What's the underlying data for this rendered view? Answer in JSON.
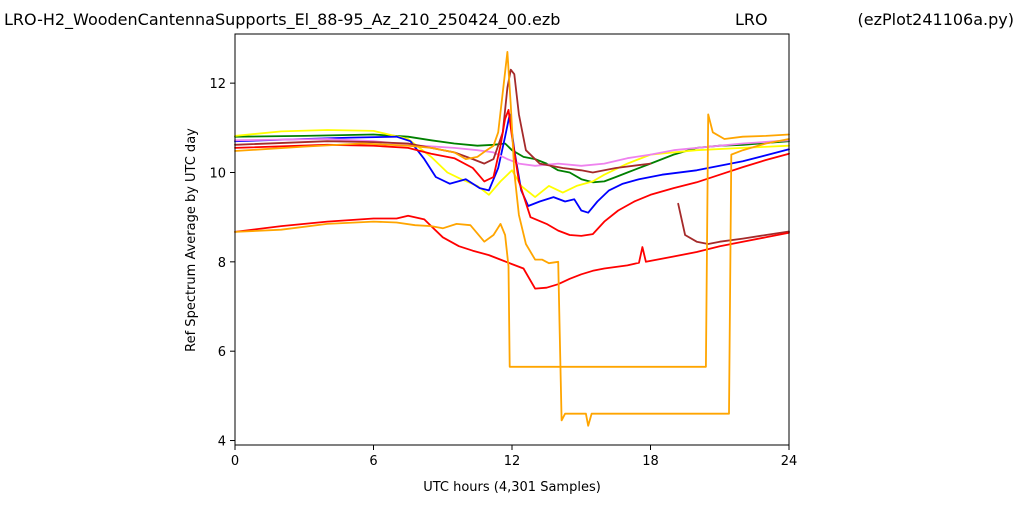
{
  "header": {
    "filename": "LRO-H2_WoodenCantennaSupports_El_88-95_Az_210_250424_00.ezb",
    "site": "LRO",
    "script": "(ezPlot241106a.py)"
  },
  "chart_data": {
    "type": "line",
    "xlabel": "UTC hours  (4,301 Samples)",
    "ylabel": "Ref Spectrum Average by UTC day",
    "xlim": [
      0,
      24
    ],
    "ylim": [
      3.9,
      13.1
    ],
    "xticks": [
      0,
      6,
      12,
      18,
      24
    ],
    "yticks": [
      4,
      6,
      8,
      10,
      12
    ],
    "grid": false,
    "legend": "none",
    "series": [
      {
        "color": "#008000",
        "points": [
          [
            0,
            10.8
          ],
          [
            3,
            10.82
          ],
          [
            6,
            10.85
          ],
          [
            7.5,
            10.8
          ],
          [
            8.5,
            10.72
          ],
          [
            9.5,
            10.65
          ],
          [
            10.5,
            10.6
          ],
          [
            11.2,
            10.62
          ],
          [
            11.7,
            10.65
          ],
          [
            12,
            10.5
          ],
          [
            12.5,
            10.35
          ],
          [
            13,
            10.3
          ],
          [
            13.5,
            10.2
          ],
          [
            14,
            10.05
          ],
          [
            14.5,
            10.0
          ],
          [
            15,
            9.85
          ],
          [
            15.5,
            9.78
          ],
          [
            16,
            9.8
          ],
          [
            16.5,
            9.9
          ],
          [
            17,
            10.0
          ],
          [
            18,
            10.2
          ],
          [
            19,
            10.4
          ],
          [
            20,
            10.55
          ],
          [
            21,
            10.6
          ],
          [
            22,
            10.62
          ],
          [
            23,
            10.66
          ],
          [
            24,
            10.7
          ]
        ]
      },
      {
        "color": "#ffff00",
        "points": [
          [
            0,
            10.82
          ],
          [
            2,
            10.92
          ],
          [
            4,
            10.95
          ],
          [
            6,
            10.93
          ],
          [
            7.5,
            10.75
          ],
          [
            8.5,
            10.35
          ],
          [
            9.2,
            10.0
          ],
          [
            9.8,
            9.85
          ],
          [
            10.5,
            9.7
          ],
          [
            11,
            9.5
          ],
          [
            11.5,
            9.8
          ],
          [
            12,
            10.05
          ],
          [
            12.4,
            9.7
          ],
          [
            13,
            9.45
          ],
          [
            13.6,
            9.7
          ],
          [
            14.2,
            9.55
          ],
          [
            14.8,
            9.7
          ],
          [
            15.5,
            9.8
          ],
          [
            16,
            9.95
          ],
          [
            17,
            10.2
          ],
          [
            18,
            10.4
          ],
          [
            20,
            10.5
          ],
          [
            22,
            10.55
          ],
          [
            24,
            10.6
          ]
        ]
      },
      {
        "color": "#0000ff",
        "points": [
          [
            0,
            10.7
          ],
          [
            3,
            10.75
          ],
          [
            5,
            10.78
          ],
          [
            7,
            10.8
          ],
          [
            7.6,
            10.7
          ],
          [
            8.2,
            10.3
          ],
          [
            8.7,
            9.9
          ],
          [
            9.3,
            9.75
          ],
          [
            10,
            9.85
          ],
          [
            10.6,
            9.65
          ],
          [
            11,
            9.6
          ],
          [
            11.4,
            10.1
          ],
          [
            11.7,
            10.8
          ],
          [
            11.9,
            11.3
          ],
          [
            12.1,
            10.5
          ],
          [
            12.4,
            9.6
          ],
          [
            12.7,
            9.25
          ],
          [
            13.2,
            9.35
          ],
          [
            13.8,
            9.45
          ],
          [
            14.3,
            9.35
          ],
          [
            14.7,
            9.4
          ],
          [
            15,
            9.15
          ],
          [
            15.3,
            9.1
          ],
          [
            15.7,
            9.35
          ],
          [
            16.2,
            9.6
          ],
          [
            16.8,
            9.75
          ],
          [
            17.5,
            9.85
          ],
          [
            18.5,
            9.95
          ],
          [
            20,
            10.05
          ],
          [
            22,
            10.25
          ],
          [
            24,
            10.52
          ]
        ]
      },
      {
        "color": "#ee82ee",
        "points": [
          [
            0,
            10.72
          ],
          [
            4,
            10.75
          ],
          [
            6,
            10.7
          ],
          [
            8,
            10.6
          ],
          [
            9.5,
            10.55
          ],
          [
            10.5,
            10.5
          ],
          [
            11.2,
            10.45
          ],
          [
            11.8,
            10.3
          ],
          [
            12.3,
            10.2
          ],
          [
            13,
            10.15
          ],
          [
            14,
            10.2
          ],
          [
            15,
            10.15
          ],
          [
            16,
            10.2
          ],
          [
            17,
            10.32
          ],
          [
            18,
            10.4
          ],
          [
            19,
            10.5
          ],
          [
            20,
            10.55
          ],
          [
            21,
            10.6
          ],
          [
            22,
            10.65
          ],
          [
            24,
            10.72
          ]
        ]
      },
      {
        "color": "#a52a2a",
        "points": [
          [
            0,
            10.62
          ],
          [
            4,
            10.7
          ],
          [
            6,
            10.68
          ],
          [
            7.5,
            10.65
          ],
          [
            8.5,
            10.55
          ],
          [
            9.5,
            10.45
          ],
          [
            10.3,
            10.3
          ],
          [
            10.8,
            10.2
          ],
          [
            11.2,
            10.3
          ],
          [
            11.6,
            10.9
          ],
          [
            11.8,
            11.9
          ],
          [
            11.95,
            12.3
          ],
          [
            12.1,
            12.2
          ],
          [
            12.3,
            11.3
          ],
          [
            12.6,
            10.5
          ],
          [
            13.2,
            10.2
          ],
          [
            14.2,
            10.1
          ],
          [
            15,
            10.05
          ],
          [
            15.5,
            10.0
          ],
          [
            16.5,
            10.1
          ],
          [
            18,
            10.2
          ]
        ]
      },
      {
        "color": "#a52a2a",
        "points": [
          [
            19.2,
            9.3
          ],
          [
            19.5,
            8.6
          ],
          [
            20,
            8.45
          ],
          [
            20.5,
            8.4
          ],
          [
            21,
            8.45
          ],
          [
            22,
            8.52
          ],
          [
            23,
            8.6
          ],
          [
            24,
            8.68
          ]
        ]
      },
      {
        "color": "#ff0000",
        "points": [
          [
            0,
            10.55
          ],
          [
            4,
            10.62
          ],
          [
            6,
            10.6
          ],
          [
            7.5,
            10.55
          ],
          [
            8.5,
            10.42
          ],
          [
            9.5,
            10.32
          ],
          [
            10.3,
            10.1
          ],
          [
            10.8,
            9.8
          ],
          [
            11.2,
            9.9
          ],
          [
            11.5,
            10.6
          ],
          [
            11.7,
            11.2
          ],
          [
            11.85,
            11.4
          ],
          [
            12,
            10.8
          ],
          [
            12.3,
            9.8
          ],
          [
            12.8,
            9.0
          ],
          [
            13.5,
            8.85
          ],
          [
            14,
            8.7
          ],
          [
            14.5,
            8.6
          ],
          [
            15,
            8.58
          ],
          [
            15.5,
            8.62
          ],
          [
            16,
            8.9
          ],
          [
            16.6,
            9.15
          ],
          [
            17.3,
            9.35
          ],
          [
            18,
            9.5
          ],
          [
            19,
            9.65
          ],
          [
            20,
            9.78
          ],
          [
            21,
            9.95
          ],
          [
            22,
            10.12
          ],
          [
            23,
            10.28
          ],
          [
            24,
            10.42
          ]
        ]
      },
      {
        "color": "#ff0000",
        "points": [
          [
            0,
            8.67
          ],
          [
            2,
            8.8
          ],
          [
            4,
            8.9
          ],
          [
            6,
            8.97
          ],
          [
            7,
            8.97
          ],
          [
            7.5,
            9.03
          ],
          [
            8.2,
            8.95
          ],
          [
            8.5,
            8.8
          ],
          [
            9,
            8.55
          ],
          [
            9.7,
            8.35
          ],
          [
            10.3,
            8.25
          ],
          [
            11,
            8.15
          ],
          [
            11.5,
            8.05
          ],
          [
            12,
            7.95
          ],
          [
            12.5,
            7.85
          ],
          [
            13,
            7.4
          ],
          [
            13.5,
            7.42
          ],
          [
            14,
            7.5
          ],
          [
            14.5,
            7.62
          ],
          [
            15,
            7.72
          ],
          [
            15.5,
            7.8
          ],
          [
            16,
            7.85
          ],
          [
            17,
            7.92
          ],
          [
            17.5,
            7.98
          ],
          [
            17.65,
            8.33
          ],
          [
            17.8,
            8.0
          ],
          [
            18,
            8.02
          ],
          [
            19,
            8.12
          ],
          [
            20,
            8.22
          ],
          [
            21,
            8.35
          ],
          [
            22,
            8.45
          ],
          [
            23,
            8.55
          ],
          [
            24,
            8.65
          ]
        ]
      },
      {
        "color": "#ffa500",
        "points": [
          [
            0,
            8.67
          ],
          [
            2,
            8.72
          ],
          [
            4,
            8.85
          ],
          [
            6,
            8.9
          ],
          [
            7,
            8.88
          ],
          [
            7.8,
            8.82
          ],
          [
            8.5,
            8.8
          ],
          [
            9,
            8.75
          ],
          [
            9.6,
            8.85
          ],
          [
            10.2,
            8.82
          ],
          [
            10.8,
            8.45
          ],
          [
            11.2,
            8.6
          ],
          [
            11.5,
            8.85
          ],
          [
            11.7,
            8.6
          ],
          [
            11.85,
            7.9
          ],
          [
            11.9,
            5.65
          ],
          [
            13,
            5.65
          ],
          [
            15,
            5.65
          ],
          [
            17,
            5.65
          ],
          [
            19,
            5.65
          ],
          [
            20.4,
            5.65
          ],
          [
            20.5,
            11.3
          ],
          [
            20.7,
            10.9
          ],
          [
            21.2,
            10.75
          ],
          [
            22,
            10.8
          ],
          [
            23,
            10.82
          ],
          [
            24,
            10.85
          ]
        ]
      },
      {
        "color": "#ffa500",
        "points": [
          [
            0,
            10.48
          ],
          [
            3,
            10.58
          ],
          [
            5.5,
            10.65
          ],
          [
            7.5,
            10.6
          ],
          [
            8.5,
            10.55
          ],
          [
            9.5,
            10.45
          ],
          [
            10,
            10.3
          ],
          [
            10.5,
            10.35
          ],
          [
            10.9,
            10.5
          ],
          [
            11.2,
            10.6
          ],
          [
            11.4,
            10.9
          ],
          [
            11.6,
            11.8
          ],
          [
            11.8,
            12.7
          ],
          [
            11.95,
            11.5
          ],
          [
            12.1,
            10.0
          ],
          [
            12.3,
            9.05
          ],
          [
            12.6,
            8.4
          ],
          [
            13,
            8.05
          ],
          [
            13.3,
            8.05
          ],
          [
            13.6,
            7.97
          ],
          [
            14,
            8.0
          ],
          [
            14.15,
            4.45
          ],
          [
            14.3,
            4.6
          ],
          [
            15,
            4.6
          ],
          [
            15.2,
            4.6
          ],
          [
            15.3,
            4.33
          ],
          [
            15.45,
            4.6
          ],
          [
            17,
            4.6
          ],
          [
            19,
            4.6
          ],
          [
            21.4,
            4.6
          ],
          [
            21.5,
            10.4
          ],
          [
            22,
            10.5
          ],
          [
            23,
            10.65
          ],
          [
            24,
            10.75
          ]
        ]
      }
    ]
  }
}
